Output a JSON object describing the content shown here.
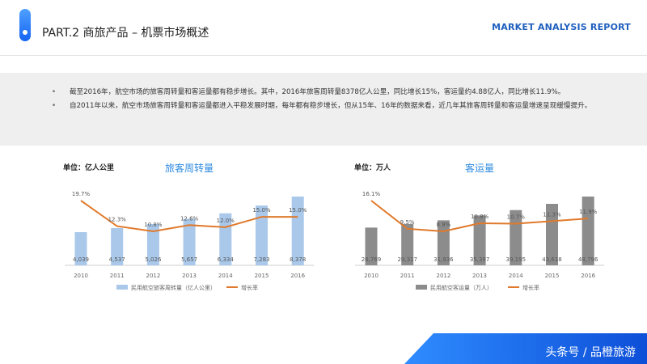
{
  "header": {
    "title": "PART.2 商旅产品 – 机票市场概述",
    "report_label": "MARKET ANALYSIS REPORT"
  },
  "summary": {
    "bullets": [
      "截至2016年，航空市场的旅客周转量和客运量都有稳步增长。其中，2016年旅客周转量8378亿人公里，同比增长15%，客运量约4.88亿人，同比增长11.9%。",
      "自2011年以来，航空市场旅客周转量和客运量都进入平稳发展时期，每年都有稳步增长，但从15年、16年的数据来看，近几年其旅客周转量和客运量增速呈现缓慢提升。"
    ]
  },
  "colors": {
    "accent": "#1565f2",
    "bar_left": "#a9c8ea",
    "bar_right": "#8c8c8c",
    "growth_line": "#e07a2c"
  },
  "chart_data": [
    {
      "type": "bar",
      "title": "旅客周转量",
      "unit_label": "单位：亿人公里",
      "categories": [
        "2010",
        "2011",
        "2012",
        "2013",
        "2014",
        "2015",
        "2016"
      ],
      "series": [
        {
          "name": "民用航空旅客周转量（亿人公里）",
          "values": [
            4039,
            4537,
            5026,
            5657,
            6334,
            7283,
            8378
          ],
          "labels": [
            "4,039",
            "4,537",
            "5,026",
            "5,657",
            "6,334",
            "7,283",
            "8,378"
          ]
        },
        {
          "name": "增长率",
          "values": [
            19.7,
            12.3,
            10.8,
            12.6,
            12.0,
            15.0,
            15.0
          ],
          "labels": [
            "19.7%",
            "12.3%",
            "10.8%",
            "12.6%",
            "12.0%",
            "15.0%",
            "15.0%"
          ]
        }
      ]
    },
    {
      "type": "bar",
      "title": "客运量",
      "unit_label": "单位：万人",
      "categories": [
        "2010",
        "2011",
        "2012",
        "2013",
        "2014",
        "2015",
        "2016"
      ],
      "series": [
        {
          "name": "民用航空客运量（万人）",
          "values": [
            26769,
            29317,
            31936,
            35397,
            39195,
            43618,
            48796
          ],
          "labels": [
            "26,769",
            "29,317",
            "31,936",
            "35,397",
            "39,195",
            "43,618",
            "48,796"
          ]
        },
        {
          "name": "增长率",
          "values": [
            16.1,
            9.5,
            8.9,
            10.8,
            10.7,
            11.3,
            11.9
          ],
          "labels": [
            "16.1%",
            "9.5%",
            "8.9%",
            "10.8%",
            "10.7%",
            "11.3%",
            "11.9%"
          ]
        }
      ]
    }
  ],
  "footer": {
    "watermark": "头条号 / 品橙旅游"
  }
}
